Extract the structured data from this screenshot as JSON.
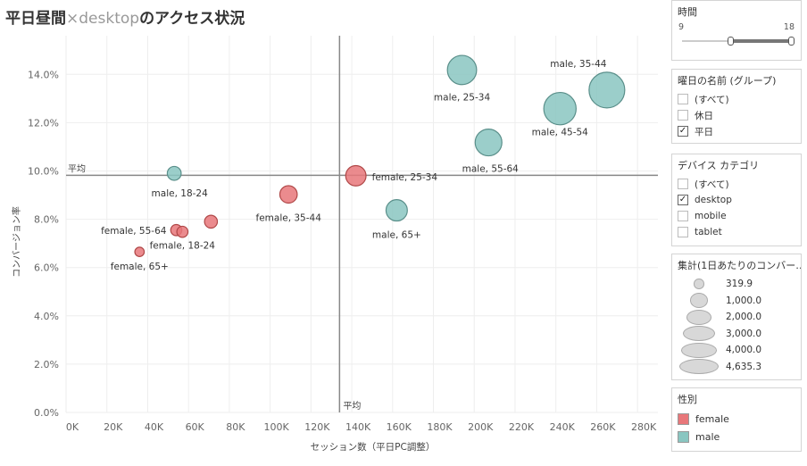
{
  "header": {
    "title_main": "平日昼間",
    "title_dim": "×desktop",
    "title_rest": "のアクセス状況"
  },
  "colors": {
    "female": "#e8777a",
    "male": "#8ac6c1",
    "female_stroke": "#b04848",
    "male_stroke": "#5a8f8a",
    "ref_line": "#888888",
    "grid": "#eeeeee"
  },
  "chart_data": {
    "type": "scatter",
    "title": "平日昼間×desktopのアクセス状況",
    "xlabel": "セッション数（平日PC調整）",
    "ylabel": "コンバージョン率",
    "xlim": [
      0,
      290000
    ],
    "ylim": [
      0,
      0.156
    ],
    "x_ticks": [
      0,
      20000,
      40000,
      60000,
      80000,
      100000,
      120000,
      140000,
      160000,
      180000,
      200000,
      220000,
      240000,
      260000,
      280000
    ],
    "x_tick_labels": [
      "0K",
      "20K",
      "40K",
      "60K",
      "80K",
      "100K",
      "120K",
      "140K",
      "160K",
      "180K",
      "200K",
      "220K",
      "240K",
      "260K",
      "280K"
    ],
    "y_ticks": [
      0,
      0.02,
      0.04,
      0.06,
      0.08,
      0.1,
      0.12,
      0.14
    ],
    "y_tick_labels": [
      "0.0%",
      "2.0%",
      "4.0%",
      "6.0%",
      "8.0%",
      "10.0%",
      "12.0%",
      "14.0%"
    ],
    "ref_lines": {
      "x_avg": 134000,
      "y_avg": 0.0982,
      "label": "平均"
    },
    "size_legend": [
      319.9,
      1000.0,
      2000.0,
      3000.0,
      4000.0,
      4635.3
    ],
    "points": [
      {
        "label": "male, 35-44",
        "gender": "male",
        "x": 265000,
        "y": 0.1335,
        "size": 4635.3
      },
      {
        "label": "male, 25-34",
        "gender": "male",
        "x": 194000,
        "y": 0.1418,
        "size": 3100
      },
      {
        "label": "male, 45-54",
        "gender": "male",
        "x": 242000,
        "y": 0.1258,
        "size": 3800
      },
      {
        "label": "male, 55-64",
        "gender": "male",
        "x": 207000,
        "y": 0.1118,
        "size": 2600
      },
      {
        "label": "male, 18-24",
        "gender": "male",
        "x": 53000,
        "y": 0.099,
        "size": 700
      },
      {
        "label": "female, 25-34",
        "gender": "female",
        "x": 142000,
        "y": 0.098,
        "size": 1500
      },
      {
        "label": "female, 35-44",
        "gender": "female",
        "x": 109000,
        "y": 0.0903,
        "size": 1100
      },
      {
        "label": "male, 65+",
        "gender": "male",
        "x": 162000,
        "y": 0.0837,
        "size": 1650
      },
      {
        "label": "female, 55-64",
        "gender": "female",
        "x": 54000,
        "y": 0.0755,
        "size": 450
      },
      {
        "label": "female, 18-24",
        "gender": "female",
        "x": 57000,
        "y": 0.0748,
        "size": 450
      },
      {
        "label": "",
        "gender": "female",
        "x": 71000,
        "y": 0.079,
        "size": 600
      },
      {
        "label": "female, 65+",
        "gender": "female",
        "x": 36000,
        "y": 0.0665,
        "size": 320
      }
    ]
  },
  "filters": {
    "time": {
      "title": "時間",
      "min": "9",
      "max": "18"
    },
    "weekday": {
      "title": "曜日の名前 (グループ)",
      "options": [
        {
          "label": "(すべて)",
          "checked": false
        },
        {
          "label": "休日",
          "checked": false
        },
        {
          "label": "平日",
          "checked": true
        }
      ]
    },
    "device": {
      "title": "デバイス カテゴリ",
      "options": [
        {
          "label": "(すべて)",
          "checked": false
        },
        {
          "label": "desktop",
          "checked": true
        },
        {
          "label": "mobile",
          "checked": false
        },
        {
          "label": "tablet",
          "checked": false
        }
      ]
    },
    "size": {
      "title": "集計(1日あたりのコンバー…",
      "values": [
        "319.9",
        "1,000.0",
        "2,000.0",
        "3,000.0",
        "4,000.0",
        "4,635.3"
      ]
    },
    "gender": {
      "title": "性別",
      "items": [
        {
          "label": "female",
          "color": "#e8777a"
        },
        {
          "label": "male",
          "color": "#8ac6c1"
        }
      ]
    }
  },
  "check_mark": "✓"
}
